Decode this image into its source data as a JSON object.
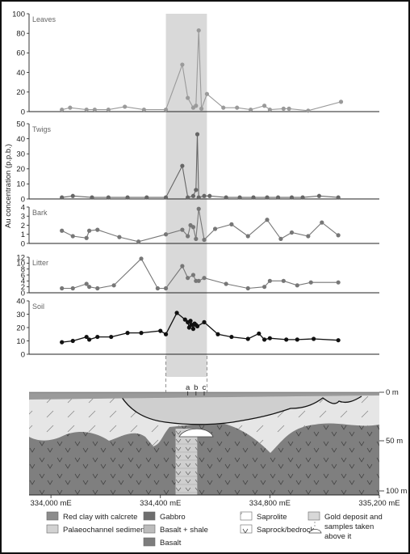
{
  "chart_data": {
    "type": "line",
    "ylabel": "Au concentration (p.p.b.)",
    "x_unit": "mE",
    "xlim": [
      333920,
      335200
    ],
    "x_ticks": [
      334000,
      334400,
      334800,
      335200
    ],
    "x_tick_labels": [
      "334,000 mE",
      "334,400 mE",
      "334,800 mE",
      "335,200 mE"
    ],
    "highlight_band": [
      334420,
      334570
    ],
    "panels": [
      {
        "name": "Leaves",
        "ylim": [
          0,
          100
        ],
        "yticks": [
          0,
          20,
          40,
          60,
          80,
          100
        ],
        "color": "#9a9a9a",
        "x": [
          334040,
          334070,
          334130,
          334160,
          334210,
          334270,
          334340,
          334420,
          334480,
          334500,
          334520,
          334530,
          334540,
          334550,
          334570,
          334630,
          334680,
          334730,
          334780,
          334800,
          334850,
          334870,
          334940,
          335060
        ],
        "y": [
          2,
          4,
          2,
          2,
          2,
          5,
          2,
          2,
          48,
          14,
          4,
          6,
          83,
          3,
          18,
          4,
          4,
          2,
          6,
          2,
          3,
          3,
          1,
          10
        ]
      },
      {
        "name": "Twigs",
        "ylim": [
          0,
          50
        ],
        "yticks": [
          0,
          10,
          20,
          30,
          40,
          50
        ],
        "color": "#666666",
        "x": [
          334040,
          334080,
          334150,
          334210,
          334280,
          334350,
          334420,
          334480,
          334500,
          334520,
          334530,
          334535,
          334540,
          334560,
          334580,
          334640,
          334690,
          334740,
          334790,
          334830,
          334880,
          334920,
          334980,
          335050
        ],
        "y": [
          1,
          2,
          1,
          1,
          1,
          1,
          1,
          22,
          1,
          2,
          6,
          43,
          1,
          2,
          2,
          1,
          1,
          1,
          1,
          1,
          1,
          1,
          2,
          1
        ]
      },
      {
        "name": "Bark",
        "ylim": [
          0,
          4
        ],
        "yticks": [
          0,
          1,
          2,
          3,
          4
        ],
        "color": "#777777",
        "x": [
          334040,
          334080,
          334130,
          334140,
          334170,
          334250,
          334320,
          334420,
          334480,
          334500,
          334510,
          334520,
          334530,
          334540,
          334560,
          334600,
          334660,
          334720,
          334790,
          334840,
          334880,
          334940,
          334990,
          335050
        ],
        "y": [
          1.4,
          0.8,
          0.6,
          1.4,
          1.5,
          0.7,
          0.2,
          1.0,
          1.5,
          0.8,
          2.0,
          1.8,
          0.5,
          3.8,
          0.4,
          1.6,
          2.1,
          0.8,
          2.6,
          0.5,
          1.2,
          0.8,
          2.3,
          0.9
        ]
      },
      {
        "name": "Litter",
        "ylim": [
          0,
          12
        ],
        "yticks": [
          0,
          2,
          4,
          6,
          8,
          10,
          12
        ],
        "color": "#777777",
        "x": [
          334040,
          334080,
          334130,
          334140,
          334170,
          334230,
          334330,
          334390,
          334420,
          334480,
          334500,
          334520,
          334530,
          334540,
          334560,
          334640,
          334720,
          334780,
          334800,
          334850,
          334900,
          334950,
          335050
        ],
        "y": [
          1.5,
          1.5,
          3,
          2,
          1.5,
          2.5,
          11.5,
          1.5,
          1.5,
          9,
          5,
          6,
          4,
          4,
          5,
          3,
          1.5,
          2,
          4,
          4,
          2.5,
          3.5,
          3.5
        ]
      },
      {
        "name": "Soil",
        "ylim": [
          0,
          40
        ],
        "yticks": [
          0,
          10,
          20,
          30,
          40
        ],
        "color": "#111111",
        "x": [
          334040,
          334080,
          334130,
          334140,
          334170,
          334220,
          334280,
          334330,
          334400,
          334420,
          334460,
          334490,
          334500,
          334505,
          334510,
          334515,
          334520,
          334525,
          334530,
          334535,
          334560,
          334610,
          334660,
          334720,
          334760,
          334780,
          334800,
          334860,
          334900,
          334960,
          335050
        ],
        "y": [
          9,
          10,
          13,
          11,
          13,
          13,
          16,
          16,
          17.5,
          15,
          31,
          26,
          24,
          20,
          25,
          22,
          19,
          23,
          22,
          21,
          24,
          15,
          13,
          11.5,
          15.5,
          11,
          12,
          11,
          11,
          11.5,
          10.5
        ]
      }
    ],
    "cross_section": {
      "depth_labels": [
        "0 m",
        "50 m",
        "100 m"
      ],
      "markers": [
        "a",
        "b",
        "c"
      ]
    },
    "legend": [
      {
        "label": "Red clay with calcrete",
        "color": "#8c8c8c"
      },
      {
        "label": "Palaeochannel sediments",
        "color": "#d2d2d2"
      },
      {
        "label": "Gabbro",
        "color": "#6e6e6e"
      },
      {
        "label": "Basalt + shale",
        "color": "#bcbcbc"
      },
      {
        "label": "Basalt",
        "color": "#7d7d7d"
      },
      {
        "label": "Saprolite",
        "color": "#ffffff"
      },
      {
        "label": "Saprock/bedrock",
        "color": "#ffffff"
      },
      {
        "label": "Gold deposit and samples taken above it",
        "color": "#d8d8d8"
      }
    ]
  }
}
